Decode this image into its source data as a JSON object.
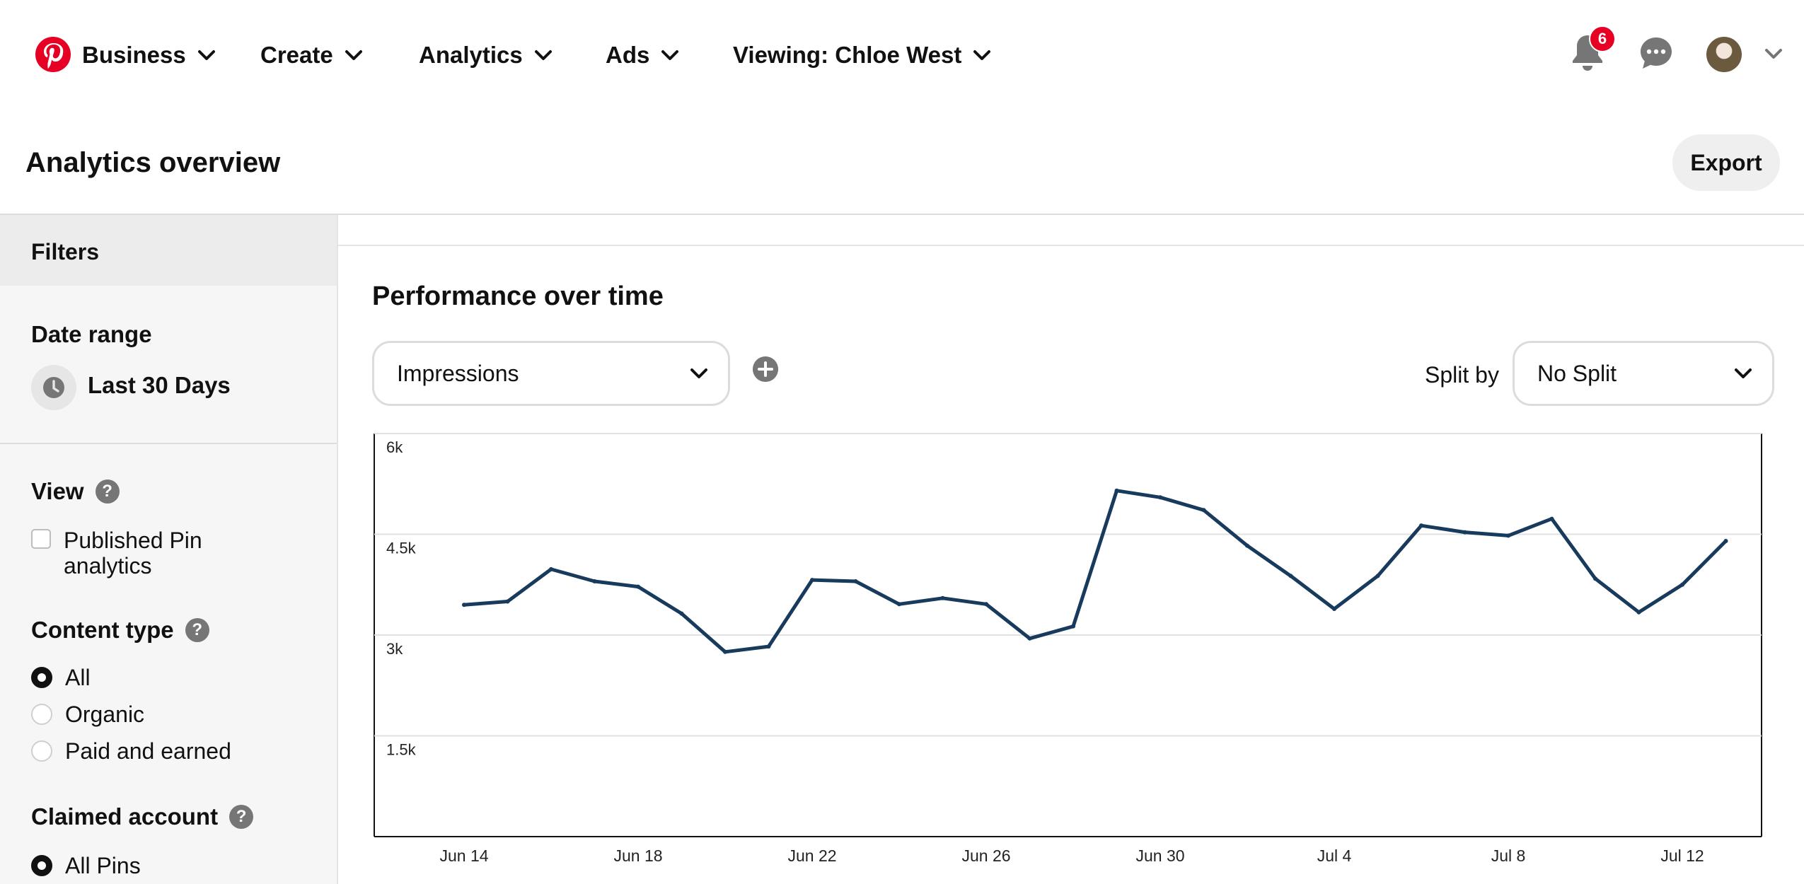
{
  "nav": {
    "items": [
      {
        "label": "Business"
      },
      {
        "label": "Create"
      },
      {
        "label": "Analytics"
      },
      {
        "label": "Ads"
      },
      {
        "label": "Viewing: Chloe West"
      }
    ],
    "notification_count": "6",
    "brand_color": "#e60023"
  },
  "header": {
    "title": "Analytics overview",
    "export_label": "Export"
  },
  "sidebar": {
    "filters_title": "Filters",
    "date_range": {
      "title": "Date range",
      "value": "Last 30 Days"
    },
    "view": {
      "title": "View",
      "option": "Published Pin analytics",
      "checked": false
    },
    "content_type": {
      "title": "Content type",
      "options": [
        "All",
        "Organic",
        "Paid and earned"
      ],
      "selected": "All"
    },
    "claimed_account": {
      "title": "Claimed account",
      "options": [
        "All Pins"
      ],
      "selected": "All Pins"
    }
  },
  "main": {
    "section_title": "Performance over time",
    "metric_select": "Impressions",
    "split_label": "Split by",
    "split_select": "No Split"
  },
  "chart_data": {
    "type": "line",
    "title": "Performance over time",
    "metric": "Impressions",
    "ylim": [
      0,
      6000
    ],
    "yticks": [
      1500,
      3000,
      4500,
      6000
    ],
    "ytick_labels": [
      "1.5k",
      "3k",
      "4.5k",
      "6k"
    ],
    "xtick_labels": [
      "Jun 14",
      "Jun 18",
      "Jun 22",
      "Jun 26",
      "Jun 30",
      "Jul 4",
      "Jul 8",
      "Jul 12"
    ],
    "xtick_indices": [
      0,
      4,
      8,
      12,
      16,
      20,
      24,
      28
    ],
    "grid": true,
    "line_color": "#183a5c",
    "x": [
      "Jun 14",
      "Jun 15",
      "Jun 16",
      "Jun 17",
      "Jun 18",
      "Jun 19",
      "Jun 20",
      "Jun 21",
      "Jun 22",
      "Jun 23",
      "Jun 24",
      "Jun 25",
      "Jun 26",
      "Jun 27",
      "Jun 28",
      "Jun 29",
      "Jun 30",
      "Jul 1",
      "Jul 2",
      "Jul 3",
      "Jul 4",
      "Jul 5",
      "Jul 6",
      "Jul 7",
      "Jul 8",
      "Jul 9",
      "Jul 10",
      "Jul 11",
      "Jul 12",
      "Jul 13"
    ],
    "values": [
      3450,
      3500,
      3980,
      3800,
      3720,
      3320,
      2750,
      2830,
      3820,
      3800,
      3460,
      3550,
      3460,
      2950,
      3130,
      5150,
      5050,
      4860,
      4330,
      3880,
      3390,
      3880,
      4630,
      4530,
      4480,
      4730,
      3840,
      3340,
      3750,
      4400
    ]
  }
}
